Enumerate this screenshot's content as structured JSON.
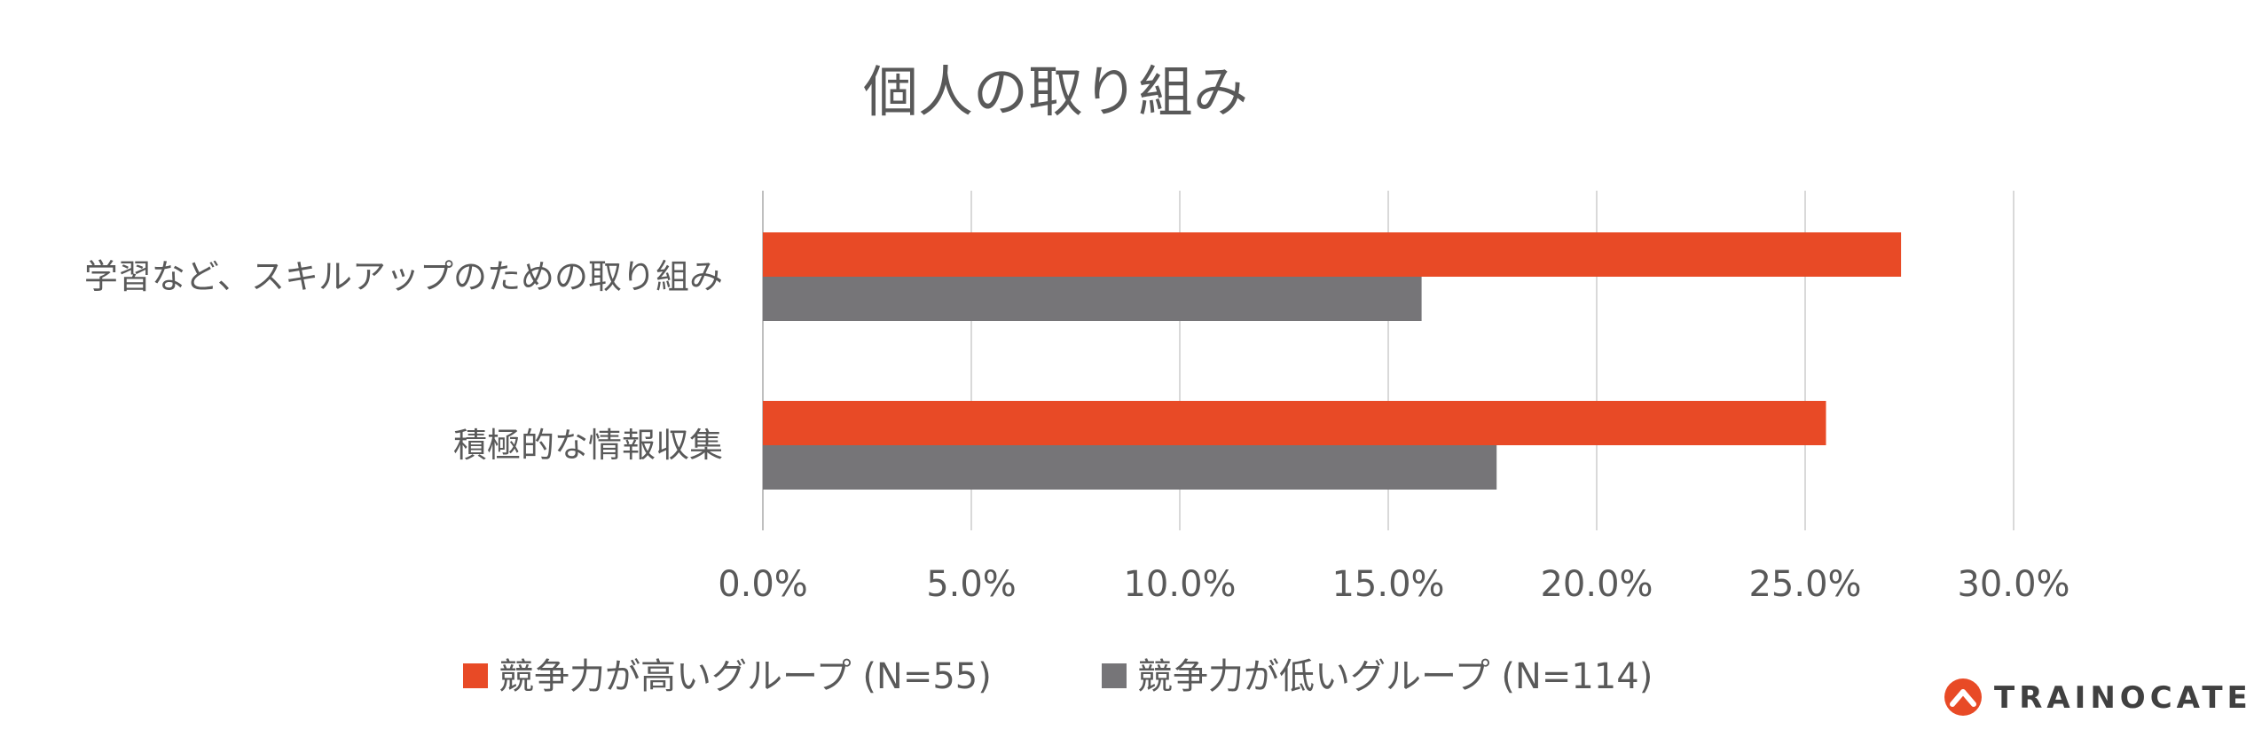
{
  "chart_data": {
    "type": "bar",
    "orientation": "horizontal",
    "title": "個人の取り組み",
    "categories": [
      "学習など、スキルアップのための取り組み",
      "積極的な情報収集"
    ],
    "series": [
      {
        "name": "競争力が高いグループ (N=55)",
        "color": "#e84a26",
        "values": [
          27.3,
          25.5
        ]
      },
      {
        "name": "競争力が低いグループ (N=114)",
        "color": "#767578",
        "values": [
          15.8,
          17.6
        ]
      }
    ],
    "x_ticks": [
      "0.0%",
      "5.0%",
      "10.0%",
      "15.0%",
      "20.0%",
      "25.0%",
      "30.0%"
    ],
    "xlim": [
      0,
      30
    ],
    "value_unit": "%",
    "grid": true,
    "legend_position": "bottom"
  },
  "logo": {
    "text": "TRAINOCATE",
    "icon": "trainocate-logo-icon",
    "color": "#e84a26"
  }
}
